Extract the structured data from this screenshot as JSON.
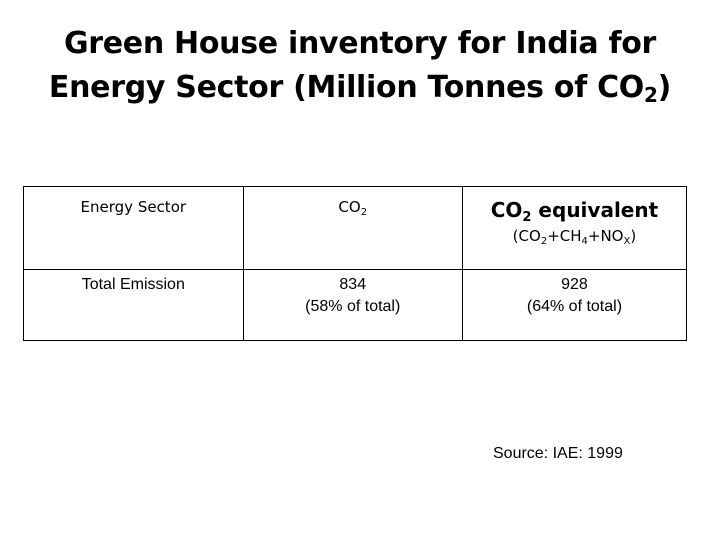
{
  "title": {
    "line1": "Green House inventory for India  for",
    "line2_pre": "Energy Sector (Million Tonnes of CO",
    "line2_sub": "2",
    "line2_post": ")"
  },
  "table": {
    "header": {
      "col1": "Energy Sector",
      "col2_main": "CO",
      "col2_sub": "2",
      "col3_main": "CO",
      "col3_sub": "2",
      "col3_rest": " equivalent",
      "col3_note": {
        "p1": "(CO",
        "s1": "2",
        "p2": "+CH",
        "s2": "4",
        "p3": "+NO",
        "s3": "X",
        "p4": ")"
      }
    },
    "rows": [
      {
        "label": "Total Emission",
        "co2_value": "834",
        "co2_share": "(58% of total)",
        "co2e_value": "928",
        "co2e_share": "(64% of total)"
      }
    ]
  },
  "source": "Source: IAE: 1999"
}
